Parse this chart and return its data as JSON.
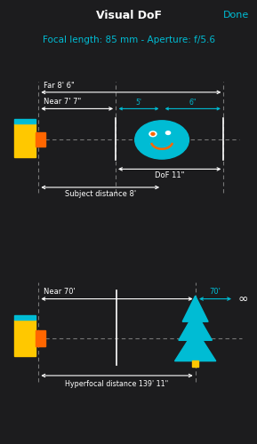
{
  "bg_top": "#1c1c1e",
  "bg_panel": "#2c2c2e",
  "cyan": "#00bcd4",
  "white": "#ffffff",
  "yellow": "#ffc800",
  "orange": "#ff6600",
  "title": "Visual DoF",
  "done": "Done",
  "subtitle": "Focal length: 85 mm - Aperture: f/5.6",
  "panel1": {
    "far_label": "Far 8' 6\"",
    "near_label": "Near 7' 7\"",
    "dof_label": "DoF 11\"",
    "subject_label": "Subject distance 8'",
    "mid_label1": "5'",
    "mid_label2": "6\""
  },
  "panel2": {
    "near_label": "Near 70'",
    "mid_label": "70'",
    "inf_label": "∞",
    "hyper_label": "Hyperfocal distance 139' 11\""
  }
}
